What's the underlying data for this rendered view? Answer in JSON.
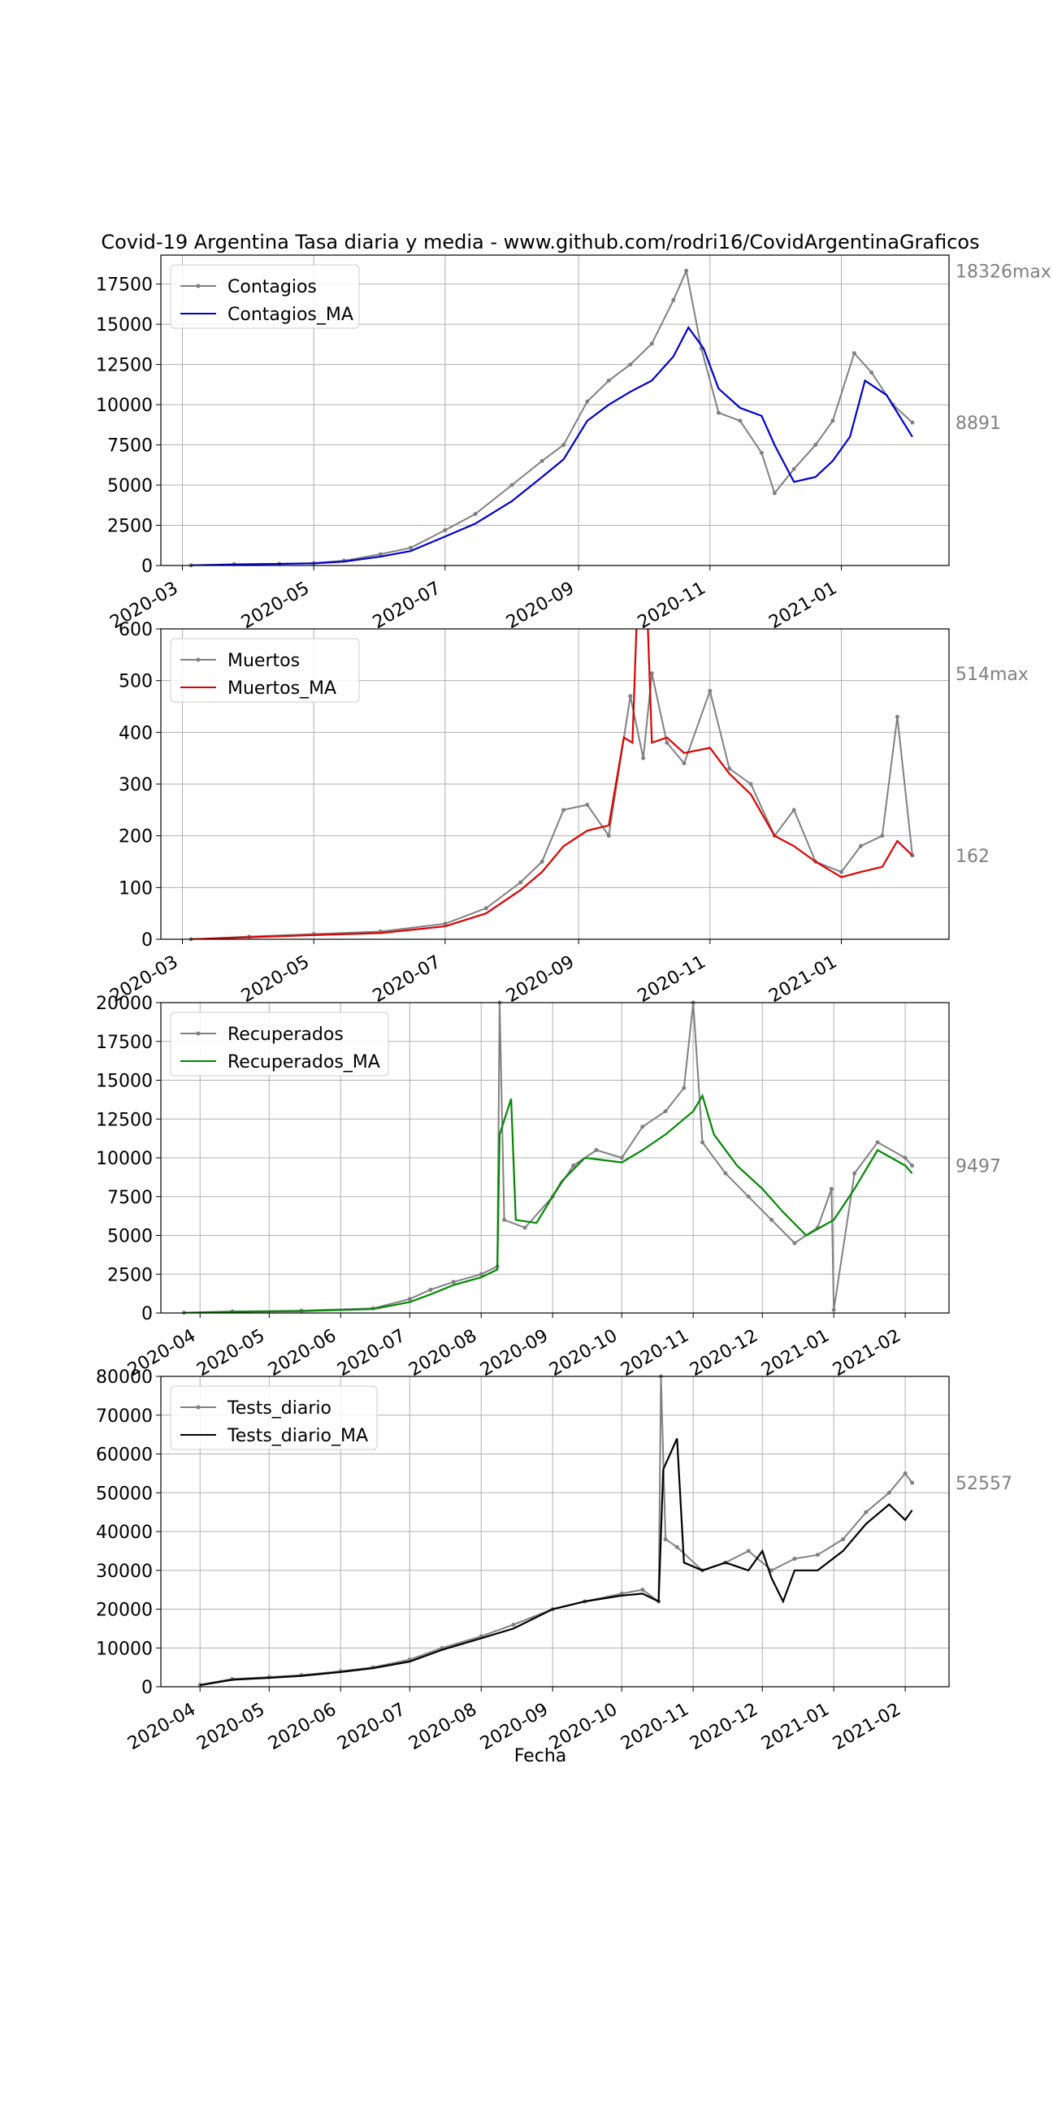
{
  "figure": {
    "title": "Covid-19 Argentina Tasa diaria y media - www.github.com/rodri16/CovidArgentinaGraficos",
    "xlabel": "Fecha"
  },
  "chart_data": [
    {
      "type": "line",
      "x_type": "date",
      "xlim": [
        "2020-02-20",
        "2021-02-20"
      ],
      "x_ticks": [
        "2020-03",
        "2020-05",
        "2020-07",
        "2020-09",
        "2020-11",
        "2021-01"
      ],
      "ylim": [
        0,
        19300
      ],
      "y_ticks": [
        0,
        2500,
        5000,
        7500,
        10000,
        12500,
        15000,
        17500
      ],
      "grid": true,
      "legend_position": "upper-left",
      "side_labels": [
        {
          "text": "18326max",
          "value": 18326
        },
        {
          "text": "8891",
          "value": 8891
        }
      ],
      "series": [
        {
          "name": "Contagios",
          "color": "#808080",
          "marker": true,
          "x": [
            "2020-03-05",
            "2020-03-25",
            "2020-04-15",
            "2020-05-01",
            "2020-05-15",
            "2020-06-01",
            "2020-06-15",
            "2020-07-01",
            "2020-07-15",
            "2020-08-01",
            "2020-08-15",
            "2020-08-25",
            "2020-09-05",
            "2020-09-15",
            "2020-09-25",
            "2020-10-05",
            "2020-10-15",
            "2020-10-21",
            "2020-10-28",
            "2020-11-05",
            "2020-11-15",
            "2020-11-25",
            "2020-12-01",
            "2020-12-10",
            "2020-12-20",
            "2020-12-28",
            "2021-01-07",
            "2021-01-15",
            "2021-01-25",
            "2021-02-03"
          ],
          "y": [
            10,
            80,
            100,
            150,
            300,
            700,
            1100,
            2200,
            3200,
            5000,
            6500,
            7500,
            10200,
            11500,
            12500,
            13800,
            16500,
            18326,
            13500,
            9500,
            9000,
            7000,
            4500,
            6000,
            7500,
            9000,
            13200,
            12000,
            10000,
            8891
          ]
        },
        {
          "name": "Contagios_MA",
          "color": "#0000cc",
          "marker": false,
          "x": [
            "2020-03-05",
            "2020-03-25",
            "2020-04-15",
            "2020-05-01",
            "2020-05-15",
            "2020-06-01",
            "2020-06-15",
            "2020-07-01",
            "2020-07-15",
            "2020-08-01",
            "2020-08-15",
            "2020-08-25",
            "2020-09-05",
            "2020-09-15",
            "2020-09-25",
            "2020-10-05",
            "2020-10-15",
            "2020-10-22",
            "2020-10-29",
            "2020-11-05",
            "2020-11-15",
            "2020-11-25",
            "2020-12-01",
            "2020-12-10",
            "2020-12-20",
            "2020-12-28",
            "2021-01-05",
            "2021-01-12",
            "2021-01-22",
            "2021-02-03"
          ],
          "y": [
            5,
            60,
            100,
            130,
            250,
            550,
            900,
            1800,
            2600,
            4000,
            5500,
            6600,
            9000,
            10000,
            10800,
            11500,
            13000,
            14800,
            13500,
            11000,
            9800,
            9300,
            7500,
            5200,
            5500,
            6500,
            8000,
            11500,
            10600,
            8000
          ]
        }
      ]
    },
    {
      "type": "line",
      "x_type": "date",
      "xlim": [
        "2020-02-20",
        "2021-02-20"
      ],
      "x_ticks": [
        "2020-03",
        "2020-05",
        "2020-07",
        "2020-09",
        "2020-11",
        "2021-01"
      ],
      "ylim": [
        0,
        600
      ],
      "y_ticks": [
        0,
        100,
        200,
        300,
        400,
        500,
        600
      ],
      "grid": true,
      "legend_position": "upper-left",
      "side_labels": [
        {
          "text": "514max",
          "value": 514
        },
        {
          "text": "162",
          "value": 162
        }
      ],
      "series": [
        {
          "name": "Muertos",
          "color": "#808080",
          "marker": true,
          "x": [
            "2020-03-05",
            "2020-04-01",
            "2020-05-01",
            "2020-06-01",
            "2020-07-01",
            "2020-07-20",
            "2020-08-05",
            "2020-08-15",
            "2020-08-25",
            "2020-09-05",
            "2020-09-15",
            "2020-09-25",
            "2020-10-01",
            "2020-10-05",
            "2020-10-12",
            "2020-10-20",
            "2020-11-01",
            "2020-11-10",
            "2020-11-20",
            "2020-12-01",
            "2020-12-10",
            "2020-12-20",
            "2021-01-01",
            "2021-01-10",
            "2021-01-20",
            "2021-01-27",
            "2021-02-03"
          ],
          "y": [
            0,
            5,
            10,
            15,
            30,
            60,
            110,
            150,
            250,
            260,
            200,
            470,
            350,
            514,
            380,
            340,
            480,
            330,
            300,
            200,
            250,
            150,
            130,
            180,
            200,
            430,
            162
          ]
        },
        {
          "name": "Muertos_MA",
          "color": "#dd0000",
          "marker": false,
          "x": [
            "2020-03-05",
            "2020-04-01",
            "2020-05-01",
            "2020-06-01",
            "2020-07-01",
            "2020-07-20",
            "2020-08-05",
            "2020-08-15",
            "2020-08-25",
            "2020-09-05",
            "2020-09-15",
            "2020-09-22",
            "2020-09-26",
            "2020-09-28",
            "2020-10-03",
            "2020-10-05",
            "2020-10-12",
            "2020-10-20",
            "2020-11-01",
            "2020-11-10",
            "2020-11-20",
            "2020-12-01",
            "2020-12-10",
            "2020-12-20",
            "2021-01-01",
            "2021-01-10",
            "2021-01-20",
            "2021-01-27",
            "2021-02-03"
          ],
          "y": [
            0,
            4,
            8,
            12,
            25,
            50,
            95,
            130,
            180,
            210,
            220,
            390,
            380,
            620,
            620,
            380,
            390,
            360,
            370,
            320,
            280,
            200,
            180,
            150,
            120,
            130,
            140,
            190,
            162
          ]
        }
      ]
    },
    {
      "type": "line",
      "x_type": "date",
      "xlim": [
        "2020-03-15",
        "2021-02-20"
      ],
      "x_ticks": [
        "2020-04",
        "2020-05",
        "2020-06",
        "2020-07",
        "2020-08",
        "2020-09",
        "2020-10",
        "2020-11",
        "2020-12",
        "2021-01",
        "2021-02"
      ],
      "ylim": [
        0,
        20000
      ],
      "y_ticks": [
        0,
        2500,
        5000,
        7500,
        10000,
        12500,
        15000,
        17500,
        20000
      ],
      "grid": true,
      "legend_position": "upper-left",
      "side_labels": [
        {
          "text": "9497",
          "value": 9497
        }
      ],
      "series": [
        {
          "name": "Recuperados",
          "color": "#808080",
          "marker": true,
          "x": [
            "2020-03-25",
            "2020-04-15",
            "2020-05-15",
            "2020-06-15",
            "2020-07-01",
            "2020-07-10",
            "2020-07-20",
            "2020-08-01",
            "2020-08-08",
            "2020-08-09",
            "2020-08-11",
            "2020-08-20",
            "2020-09-01",
            "2020-09-10",
            "2020-09-20",
            "2020-10-01",
            "2020-10-10",
            "2020-10-20",
            "2020-10-28",
            "2020-11-01",
            "2020-11-05",
            "2020-11-15",
            "2020-11-25",
            "2020-12-05",
            "2020-12-15",
            "2020-12-25",
            "2020-12-31",
            "2021-01-01",
            "2021-01-10",
            "2021-01-20",
            "2021-02-01",
            "2021-02-04"
          ],
          "y": [
            20,
            100,
            150,
            300,
            900,
            1500,
            2000,
            2500,
            3000,
            20000,
            6000,
            5500,
            7500,
            9500,
            10500,
            10000,
            12000,
            13000,
            14500,
            20000,
            11000,
            9000,
            7500,
            6000,
            4500,
            5500,
            8000,
            200,
            9000,
            11000,
            10000,
            9497
          ]
        },
        {
          "name": "Recuperados_MA",
          "color": "#008800",
          "marker": false,
          "x": [
            "2020-03-25",
            "2020-04-15",
            "2020-05-15",
            "2020-06-15",
            "2020-07-01",
            "2020-07-10",
            "2020-07-20",
            "2020-08-01",
            "2020-08-08",
            "2020-08-09",
            "2020-08-14",
            "2020-08-16",
            "2020-08-25",
            "2020-09-05",
            "2020-09-15",
            "2020-10-01",
            "2020-10-10",
            "2020-10-20",
            "2020-11-01",
            "2020-11-05",
            "2020-11-10",
            "2020-11-20",
            "2020-12-01",
            "2020-12-10",
            "2020-12-20",
            "2021-01-01",
            "2021-01-10",
            "2021-01-20",
            "2021-02-01",
            "2021-02-04"
          ],
          "y": [
            10,
            80,
            120,
            250,
            700,
            1200,
            1800,
            2300,
            2800,
            11500,
            13800,
            6000,
            5800,
            8500,
            10000,
            9700,
            10500,
            11500,
            13000,
            14000,
            11500,
            9500,
            8000,
            6500,
            5000,
            6000,
            8000,
            10500,
            9500,
            9000
          ]
        }
      ]
    },
    {
      "type": "line",
      "x_type": "date",
      "xlim": [
        "2020-03-15",
        "2021-02-20"
      ],
      "x_ticks": [
        "2020-04",
        "2020-05",
        "2020-06",
        "2020-07",
        "2020-08",
        "2020-09",
        "2020-10",
        "2020-11",
        "2020-12",
        "2021-01",
        "2021-02"
      ],
      "ylim": [
        0,
        80000
      ],
      "y_ticks": [
        0,
        10000,
        20000,
        30000,
        40000,
        50000,
        60000,
        70000,
        80000
      ],
      "grid": true,
      "legend_position": "upper-left",
      "side_labels": [
        {
          "text": "52557",
          "value": 52557
        }
      ],
      "series": [
        {
          "name": "Tests_diario",
          "color": "#808080",
          "marker": true,
          "x": [
            "2020-04-01",
            "2020-04-15",
            "2020-05-01",
            "2020-05-15",
            "2020-06-01",
            "2020-06-15",
            "2020-07-01",
            "2020-07-15",
            "2020-08-01",
            "2020-08-15",
            "2020-09-01",
            "2020-09-15",
            "2020-10-01",
            "2020-10-10",
            "2020-10-17",
            "2020-10-18",
            "2020-10-20",
            "2020-10-25",
            "2020-11-05",
            "2020-11-15",
            "2020-11-25",
            "2020-12-05",
            "2020-12-15",
            "2020-12-25",
            "2021-01-05",
            "2021-01-15",
            "2021-01-25",
            "2021-02-01",
            "2021-02-04"
          ],
          "y": [
            500,
            2000,
            2500,
            3000,
            4000,
            5000,
            7000,
            10000,
            13000,
            16000,
            20000,
            22000,
            24000,
            25000,
            22000,
            80000,
            38000,
            36000,
            30000,
            32000,
            35000,
            30000,
            33000,
            34000,
            38000,
            45000,
            50000,
            55000,
            52557
          ]
        },
        {
          "name": "Tests_diario_MA",
          "color": "#000000",
          "marker": false,
          "x": [
            "2020-04-01",
            "2020-04-15",
            "2020-05-01",
            "2020-05-15",
            "2020-06-01",
            "2020-06-15",
            "2020-07-01",
            "2020-07-15",
            "2020-08-01",
            "2020-08-15",
            "2020-09-01",
            "2020-09-15",
            "2020-10-01",
            "2020-10-10",
            "2020-10-17",
            "2020-10-19",
            "2020-10-25",
            "2020-10-28",
            "2020-11-05",
            "2020-11-15",
            "2020-11-25",
            "2020-12-01",
            "2020-12-05",
            "2020-12-10",
            "2020-12-15",
            "2020-12-25",
            "2021-01-05",
            "2021-01-15",
            "2021-01-25",
            "2021-02-01",
            "2021-02-04"
          ],
          "y": [
            400,
            1800,
            2300,
            2800,
            3800,
            4800,
            6500,
            9500,
            12500,
            15000,
            20000,
            22000,
            23500,
            24000,
            22000,
            56000,
            64000,
            32000,
            30000,
            32000,
            30000,
            35000,
            28000,
            22000,
            30000,
            30000,
            35000,
            42000,
            47000,
            43000,
            45500
          ]
        }
      ]
    }
  ]
}
